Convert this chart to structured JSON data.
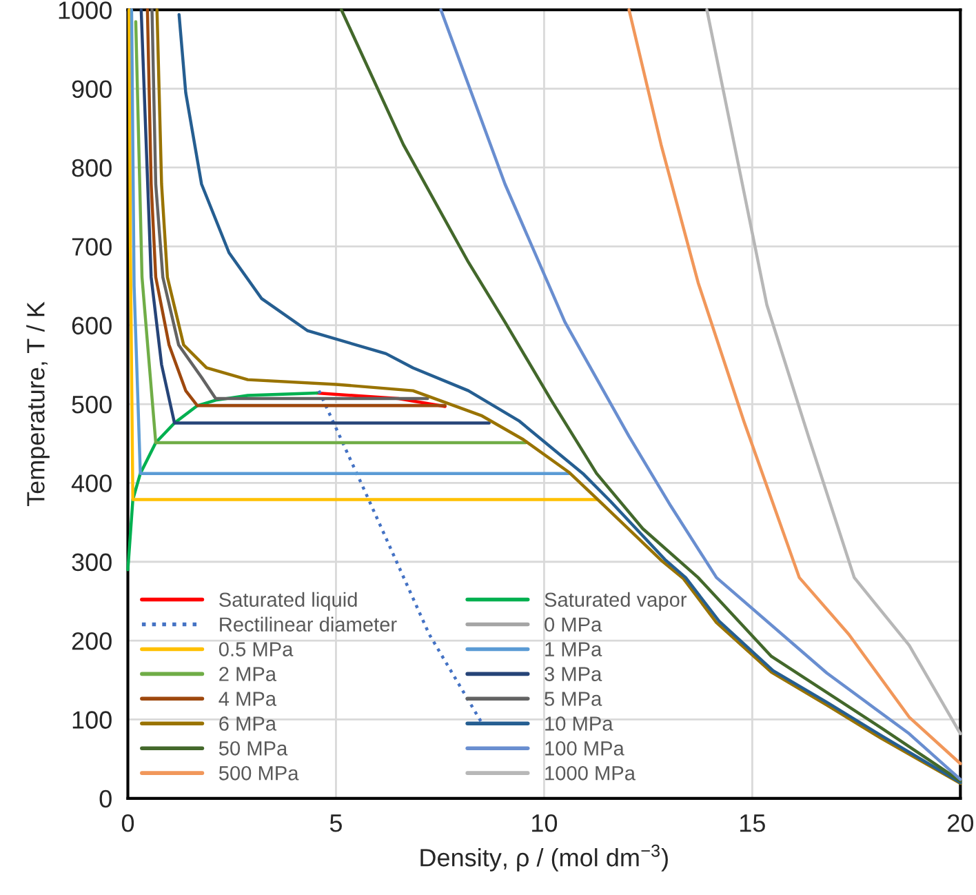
{
  "chart_data": {
    "type": "line",
    "xlabel": "Density, ρ / (mol dm$^{−3}$)",
    "ylabel": "Temperature, T / K",
    "xlim": [
      0,
      20
    ],
    "ylim": [
      0,
      1000
    ],
    "xticks": [
      0,
      5,
      10,
      15,
      20
    ],
    "yticks": [
      0,
      100,
      200,
      300,
      400,
      500,
      600,
      700,
      800,
      900,
      1000
    ],
    "grid": true,
    "legend": "bottom left",
    "series": [
      {
        "name": "Saturated liquid",
        "color": "#ff0000",
        "x": [
          4.54,
          6.5,
          7.62
        ],
        "values": [
          514,
          507,
          497
        ]
      },
      {
        "name": "Saturated vapor",
        "color": "#00b050",
        "x": [
          0.0,
          0.12,
          0.3,
          0.67,
          1.12,
          1.67,
          2.11,
          2.88,
          4.54
        ],
        "values": [
          290,
          379,
          412,
          451,
          476,
          498,
          505,
          511,
          514
        ]
      },
      {
        "name": "Rectilinear diameter",
        "color": "#4472c4",
        "line_style": "dotted",
        "x": [
          4.59,
          5.75,
          7.24,
          8.51
        ],
        "values": [
          517,
          383,
          208,
          95
        ]
      },
      {
        "name": "0 MPa",
        "color": "#a5a5a5",
        "x": [
          null,
          null
        ],
        "values": [
          null,
          null
        ]
      },
      {
        "name": "0.5 MPa",
        "color": "#ffc000",
        "x": [
          0.03,
          0.06,
          0.12,
          11.27
        ],
        "values": [
          1000,
          700,
          379,
          379
        ]
      },
      {
        "name": "1 MPa",
        "color": "#5b9bd5",
        "x": [
          0.09,
          0.15,
          0.3,
          10.61
        ],
        "values": [
          1000,
          650,
          412,
          412
        ]
      },
      {
        "name": "2 MPa",
        "color": "#70ad47",
        "x": [
          0.19,
          0.34,
          0.67,
          9.56
        ],
        "values": [
          985,
          661,
          451,
          451
        ]
      },
      {
        "name": "3 MPa",
        "color": "#264478",
        "x": [
          0.32,
          0.56,
          0.81,
          1.12,
          8.68
        ],
        "values": [
          1000,
          661,
          550,
          476,
          476
        ]
      },
      {
        "name": "4 MPa",
        "color": "#9e480e",
        "x": [
          0.47,
          0.56,
          0.67,
          0.99,
          1.39,
          1.67,
          7.62
        ],
        "values": [
          1000,
          779,
          661,
          575,
          517,
          498,
          498
        ]
      },
      {
        "name": "5 MPa",
        "color": "#636363",
        "x": [
          0.58,
          0.67,
          0.84,
          1.22,
          1.77,
          2.11,
          7.2
        ],
        "values": [
          1000,
          779,
          661,
          575,
          534,
          507,
          507
        ]
      },
      {
        "name": "6 MPa",
        "color": "#997300",
        "x": [
          0.7,
          0.81,
          0.95,
          1.34,
          1.89,
          2.88,
          5.0,
          6.85,
          8.51,
          9.5,
          10.61,
          11.27,
          12.81,
          13.34,
          14.14,
          15.46,
          16.8,
          18.1,
          20
        ],
        "values": [
          1000,
          779,
          661,
          575,
          546,
          531,
          525,
          517,
          485,
          455,
          413,
          380,
          302,
          279,
          223,
          160,
          118,
          76,
          19
        ]
      },
      {
        "name": "10 MPa",
        "color": "#255e91",
        "x": [
          1.23,
          1.39,
          1.77,
          2.43,
          3.21,
          4.32,
          6.2,
          6.85,
          8.18,
          9.39,
          10.93,
          11.59,
          12.9,
          13.4,
          14.2,
          15.5,
          16.85,
          18.15,
          20
        ],
        "values": [
          994,
          895,
          779,
          692,
          634,
          593,
          564,
          546,
          517,
          479,
          412,
          377,
          303,
          280,
          225,
          162,
          120,
          78,
          20
        ]
      },
      {
        "name": "50 MPa",
        "color": "#43682b",
        "x": [
          5.13,
          6.62,
          8.18,
          9.06,
          10.17,
          11.26,
          12.37,
          13.7,
          15.46,
          18.11,
          20
        ],
        "values": [
          1000,
          829,
          680,
          604,
          505,
          412,
          342,
          280,
          180,
          89,
          22
        ]
      },
      {
        "name": "100 MPa",
        "color": "#698ed0",
        "x": [
          7.52,
          9.06,
          10.5,
          12.04,
          13.04,
          14.14,
          16.79,
          18.77,
          20
        ],
        "values": [
          1000,
          779,
          604,
          459,
          371,
          280,
          159,
          82,
          24
        ]
      },
      {
        "name": "500 MPa",
        "color": "#f1975a",
        "x": [
          12.04,
          12.81,
          13.7,
          14.8,
          16.13,
          17.32,
          18.77,
          20
        ],
        "values": [
          1000,
          829,
          654,
          478,
          280,
          208,
          103,
          44
        ]
      },
      {
        "name": "1000 MPa",
        "color": "#b7b7b7",
        "x": [
          13.91,
          14.57,
          15.35,
          16.35,
          17.45,
          18.77,
          20
        ],
        "values": [
          1000,
          829,
          626,
          459,
          280,
          194,
          82
        ]
      }
    ]
  }
}
